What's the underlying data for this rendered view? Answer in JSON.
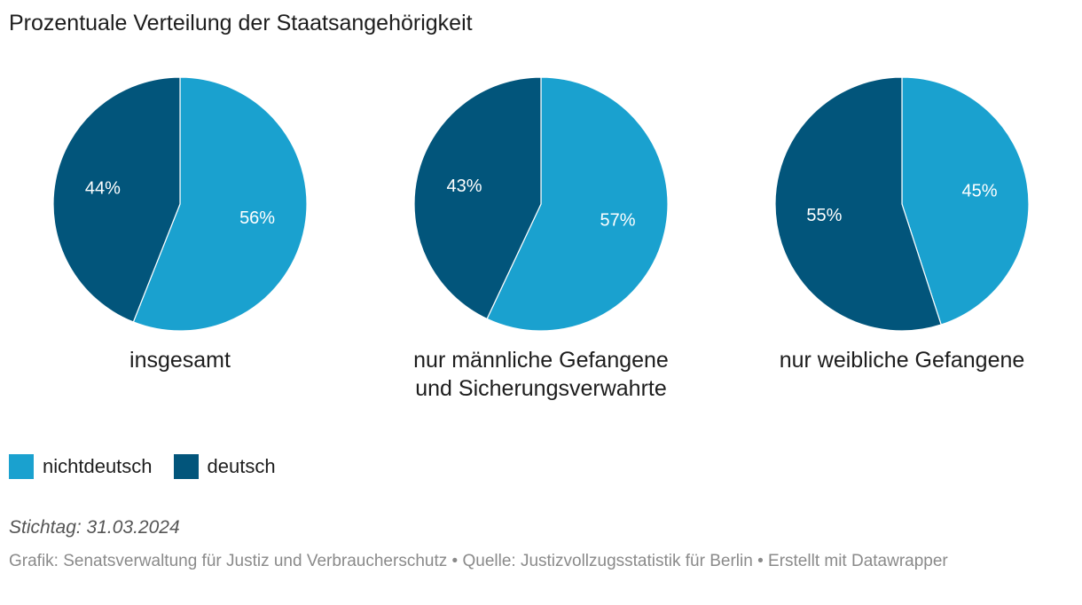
{
  "colors": {
    "nichtdeutsch": "#1aa1cf",
    "deutsch": "#02557b",
    "slice_text": "#ffffff"
  },
  "chart_data": {
    "type": "pie",
    "title": "Prozentuale Verteilung der Staatsangehörigkeit",
    "categories": [
      "nichtdeutsch",
      "deutsch"
    ],
    "pies": [
      {
        "label": "insgesamt",
        "label_line2": "",
        "values": [
          56,
          44
        ],
        "value_labels": [
          "56%",
          "44%"
        ]
      },
      {
        "label": "nur männliche Gefangene",
        "label_line2": "und Sicherungsverwahrte",
        "values": [
          57,
          43
        ],
        "value_labels": [
          "57%",
          "43%"
        ]
      },
      {
        "label": "nur weibliche Gefangene",
        "label_line2": "",
        "values": [
          45,
          55
        ],
        "value_labels": [
          "45%",
          "55%"
        ]
      }
    ]
  },
  "legend": {
    "items": [
      {
        "label": "nichtdeutsch"
      },
      {
        "label": "deutsch"
      }
    ]
  },
  "note": "Stichtag: 31.03.2024",
  "footer": {
    "grafik": "Grafik: Senatsverwaltung für Justiz und Verbraucherschutz",
    "sep1": " • ",
    "quelle": "Quelle: Justizvollzugsstatistik für Berlin",
    "sep2": " • ",
    "erstellt": "Erstellt mit Datawrapper"
  }
}
